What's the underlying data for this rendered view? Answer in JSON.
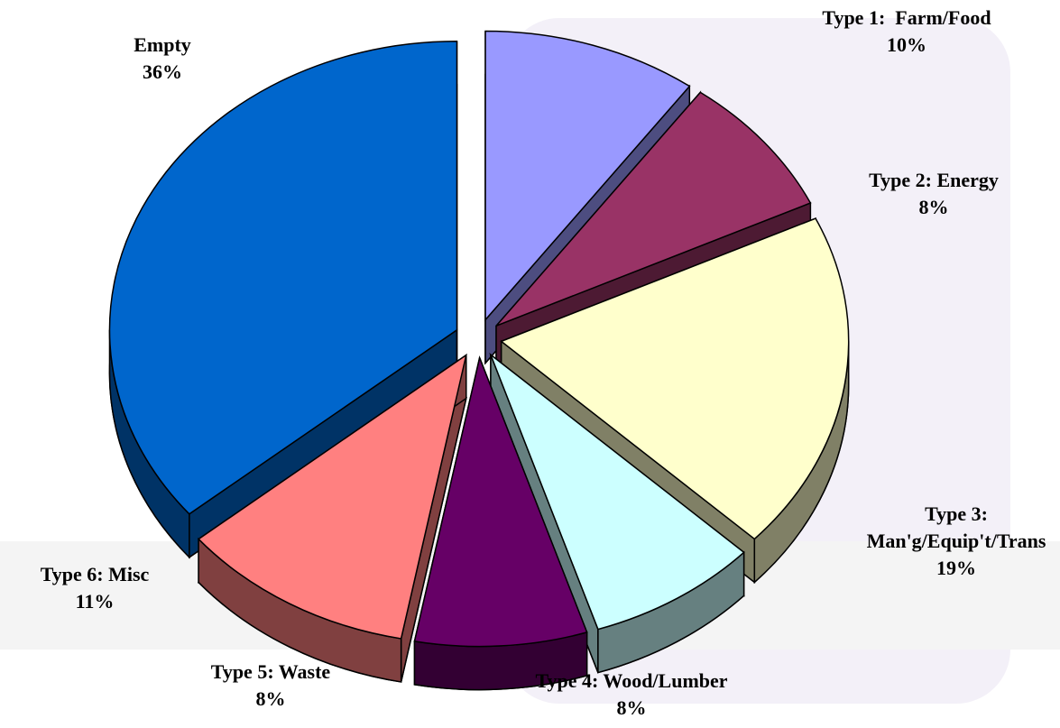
{
  "chart_data": {
    "type": "pie3d",
    "categories": [
      "Type 1:  Farm/Food",
      "Type 2: Energy",
      "Type 3: Man'g/Equip't/Trans",
      "Type 4: Wood/Lumber",
      "Type 5: Waste",
      "Type 6: Misc",
      "Empty"
    ],
    "values": [
      10,
      8,
      19,
      8,
      8,
      11,
      36
    ],
    "value_labels": [
      "10%",
      "8%",
      "19%",
      "8%",
      "8%",
      "11%",
      "36%"
    ],
    "colors": [
      "#9999ff",
      "#993366",
      "#ffffcc",
      "#ccffff",
      "#660066",
      "#ff8080",
      "#0066cc"
    ]
  }
}
